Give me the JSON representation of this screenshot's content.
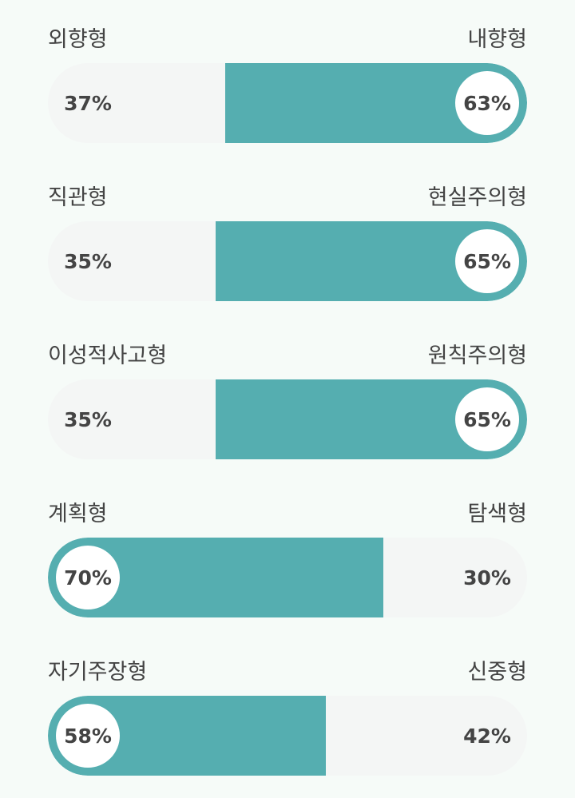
{
  "chart_data": {
    "type": "bar",
    "title": "",
    "orientation": "horizontal-stacked-100",
    "colors": {
      "active": "#55aeb0",
      "inactive": "#f4f6f5",
      "background": "#f6fbf8",
      "text": "#444444"
    },
    "rows": [
      {
        "left_label": "외향형",
        "left_value": 37,
        "right_label": "내향형",
        "right_value": 63,
        "dominant": "right"
      },
      {
        "left_label": "직관형",
        "left_value": 35,
        "right_label": "현실주의형",
        "right_value": 65,
        "dominant": "right"
      },
      {
        "left_label": "이성적사고형",
        "left_value": 35,
        "right_label": "원칙주의형",
        "right_value": 65,
        "dominant": "right"
      },
      {
        "left_label": "계획형",
        "left_value": 70,
        "right_label": "탐색형",
        "right_value": 30,
        "dominant": "left"
      },
      {
        "left_label": "자기주장형",
        "left_value": 58,
        "right_label": "신중형",
        "right_value": 42,
        "dominant": "left"
      }
    ]
  },
  "rows": [
    {
      "left": "외향형",
      "right": "내향형",
      "left_pct": "37%",
      "right_pct": "63%"
    },
    {
      "left": "직관형",
      "right": "현실주의형",
      "left_pct": "35%",
      "right_pct": "65%"
    },
    {
      "left": "이성적사고형",
      "right": "원칙주의형",
      "left_pct": "35%",
      "right_pct": "65%"
    },
    {
      "left": "계획형",
      "right": "탐색형",
      "left_pct": "70%",
      "right_pct": "30%"
    },
    {
      "left": "자기주장형",
      "right": "신중형",
      "left_pct": "58%",
      "right_pct": "42%"
    }
  ]
}
